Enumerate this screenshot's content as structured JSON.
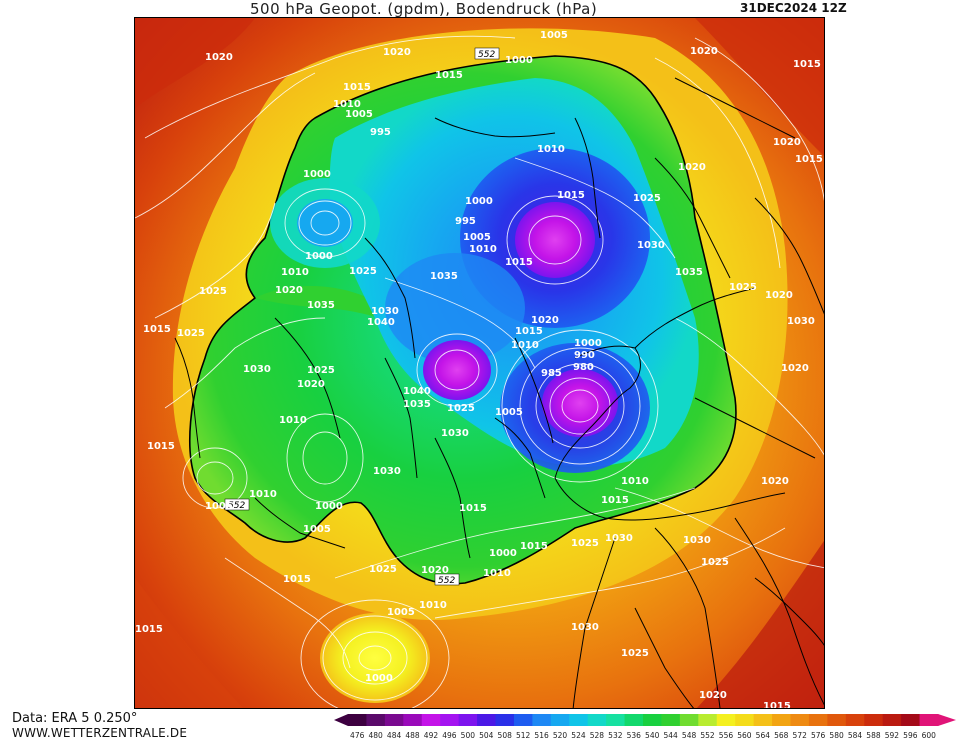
{
  "header": {
    "title": "500 hPa Geopot. (gpdm), Bodendruck (hPa)",
    "datestamp": "31DEC2024 12Z"
  },
  "footer": {
    "data_source": "Data: ERA 5 0.250°",
    "website": "WWW.WETTERZENTRALE.DE"
  },
  "legend": {
    "levels": [
      "476",
      "480",
      "484",
      "488",
      "492",
      "496",
      "500",
      "504",
      "508",
      "512",
      "516",
      "520",
      "524",
      "528",
      "532",
      "536",
      "540",
      "544",
      "548",
      "552",
      "556",
      "560",
      "564",
      "568",
      "572",
      "576",
      "580",
      "584",
      "588",
      "592",
      "596",
      "600"
    ],
    "colors": [
      "#3d0040",
      "#5a0a6a",
      "#7a0a90",
      "#9a0aba",
      "#c414e8",
      "#a414f0",
      "#7d14ee",
      "#4b18e6",
      "#2a30e8",
      "#1e5cf0",
      "#1e88f4",
      "#16a8f0",
      "#10c4e8",
      "#12d8c8",
      "#16e0a0",
      "#12d86c",
      "#18d040",
      "#30d030",
      "#70dc30",
      "#b8ec30",
      "#f4f020",
      "#f4dc1a",
      "#f4c018",
      "#f2a412",
      "#ee8a12",
      "#e8720e",
      "#e0580c",
      "#d8420c",
      "#cc2c0c",
      "#ba1a10",
      "#a40a18",
      "#e01478"
    ]
  },
  "map": {
    "contour_label_552": "552",
    "pressure_labels": [
      "1020",
      "1020",
      "1005",
      "1000",
      "1015",
      "1020",
      "1015",
      "1015",
      "1010",
      "1005",
      "995",
      "1010",
      "1000",
      "1020",
      "1015",
      "1000",
      "1015",
      "1020",
      "1025",
      "1000",
      "995",
      "1005",
      "1010",
      "1015",
      "1025",
      "1030",
      "1035",
      "1010",
      "1020",
      "1025",
      "1035",
      "1030",
      "1040",
      "1035",
      "1020",
      "1030",
      "1025",
      "1015",
      "1025",
      "1020",
      "1010",
      "1000",
      "990",
      "980",
      "985",
      "1025",
      "1015",
      "1030",
      "1040",
      "1035",
      "1025",
      "1020",
      "1030",
      "1005",
      "1010",
      "1030",
      "1015",
      "1010",
      "1000",
      "1005",
      "1005",
      "1010",
      "1015",
      "1000",
      "1015",
      "1015",
      "1020",
      "1010",
      "1015",
      "1025",
      "1030",
      "1030",
      "1025",
      "1025",
      "1020",
      "1020",
      "1005",
      "1010",
      "1030",
      "1025",
      "1015",
      "1000",
      "1020",
      "1015"
    ]
  }
}
